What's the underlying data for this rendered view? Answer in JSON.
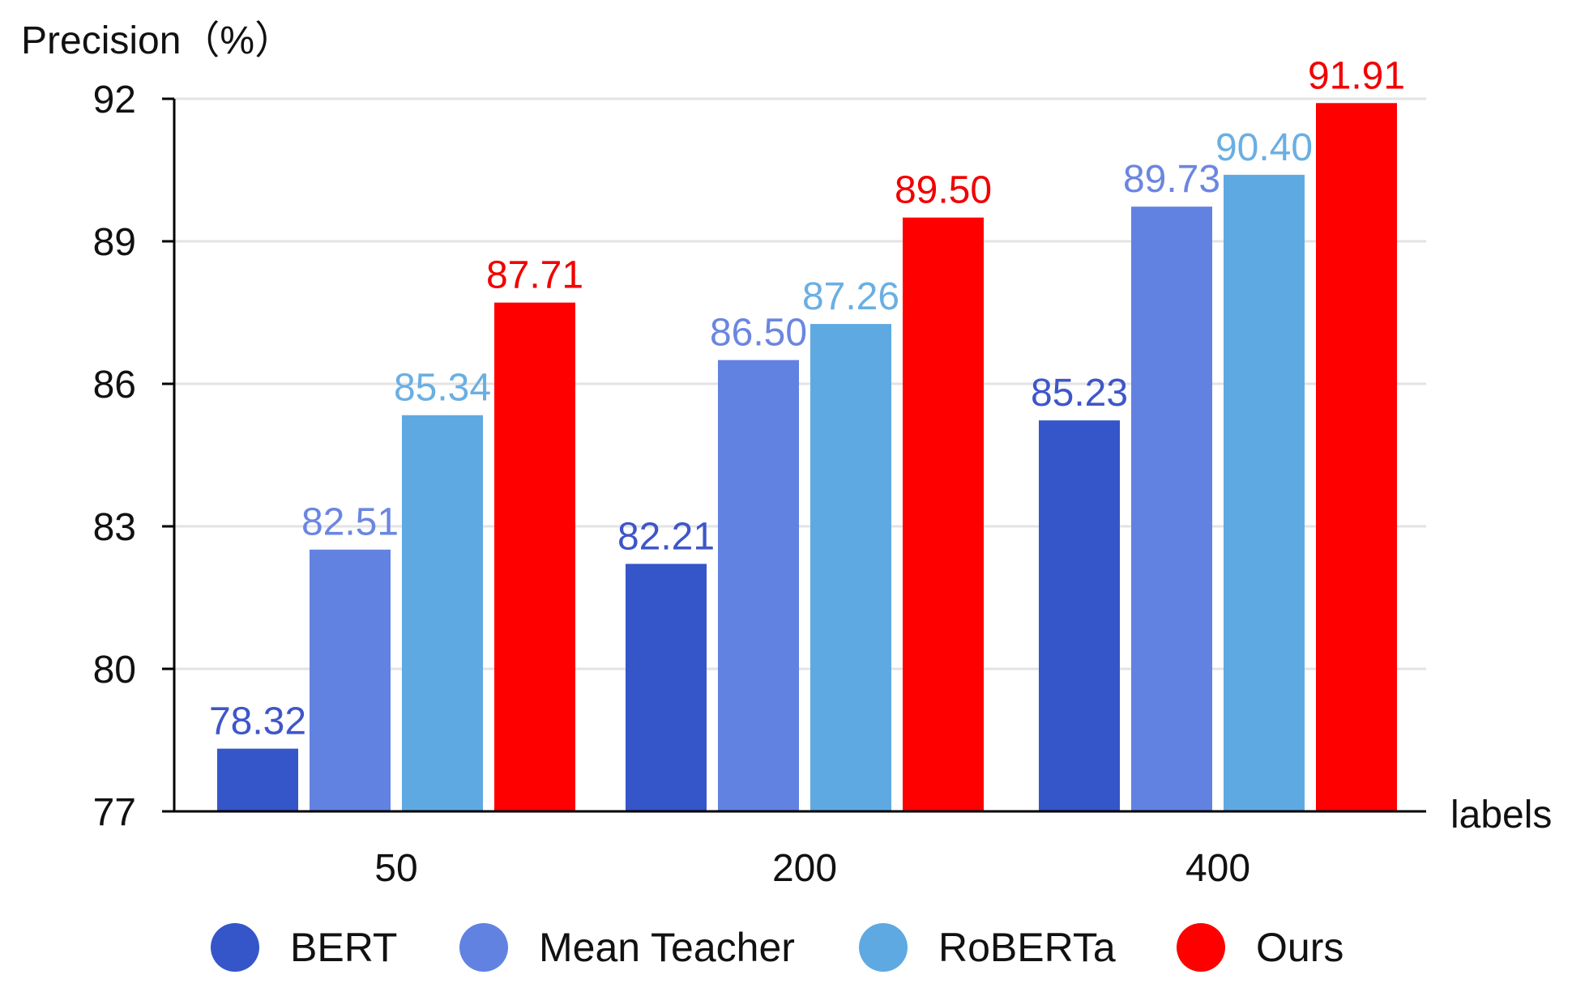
{
  "chart_data": {
    "type": "bar",
    "ylabel": "Precision（%）",
    "xlabel": "labels",
    "categories": [
      "50",
      "200",
      "400"
    ],
    "ylim": [
      77,
      92
    ],
    "yticks": [
      "77",
      "80",
      "83",
      "86",
      "89",
      "92"
    ],
    "grid": true,
    "legend_position": "bottom",
    "series": [
      {
        "name": "BERT",
        "values": [
          78.32,
          82.21,
          85.23
        ],
        "value_labels": [
          "78.32",
          "82.21",
          "85.23"
        ],
        "color": "#3556C9",
        "label_color": "#3F56C8"
      },
      {
        "name": "Mean Teacher",
        "values": [
          82.51,
          86.5,
          89.73
        ],
        "value_labels": [
          "82.51",
          "86.50",
          "89.73"
        ],
        "color": "#6282E2",
        "label_color": "#6B86E0"
      },
      {
        "name": "RoBERTa",
        "values": [
          85.34,
          87.26,
          90.4
        ],
        "value_labels": [
          "85.34",
          "87.26",
          "90.40"
        ],
        "color": "#5FA9E2",
        "label_color": "#6AAFE3"
      },
      {
        "name": "Ours",
        "values": [
          87.71,
          89.5,
          91.91
        ],
        "value_labels": [
          "87.71",
          "89.50",
          "91.91"
        ],
        "color": "#FF0000",
        "label_color": "#F20000"
      }
    ]
  }
}
